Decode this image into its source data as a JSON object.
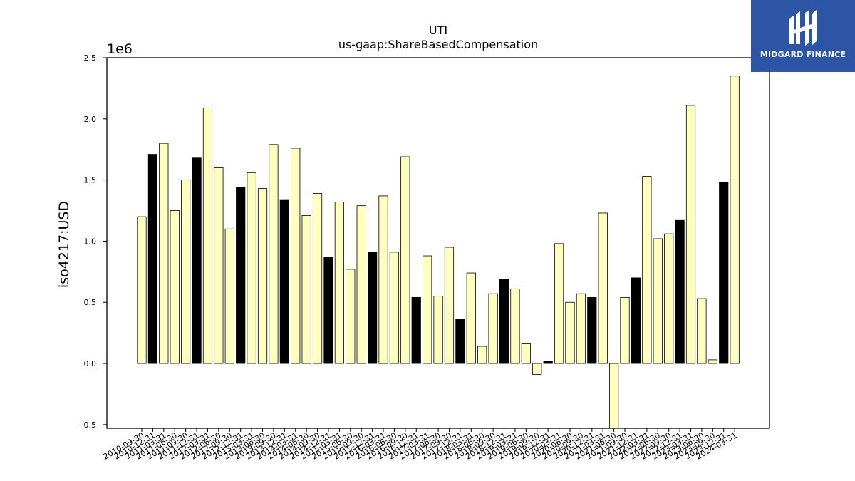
{
  "chart_data": {
    "type": "bar",
    "title": "UTI",
    "subtitle": "us-gaap:ShareBasedCompensation",
    "ylabel": "iso4217:USD",
    "xlabel": "",
    "y_offset_label": "1e6",
    "ylim": [
      -0.53,
      2.5
    ],
    "yticks": [
      -0.5,
      0.0,
      0.5,
      1.0,
      1.5,
      2.0,
      2.5
    ],
    "ytick_labels": [
      "−0.5",
      "0.0",
      "0.5",
      "1.0",
      "1.5",
      "2.0",
      "2.5"
    ],
    "colors": {
      "fiscal_year_end": "#000000",
      "other": "#ffffc0",
      "edge": "#000000"
    },
    "categories": [
      "2010-09-30",
      "2010-12-31",
      "2011-03-31",
      "2011-06-30",
      "2011-09-30",
      "2011-12-31",
      "2012-03-31",
      "2012-06-30",
      "2012-09-30",
      "2012-12-31",
      "2013-03-31",
      "2013-06-30",
      "2013-09-30",
      "2013-12-31",
      "2014-03-31",
      "2014-06-30",
      "2014-09-30",
      "2014-12-31",
      "2015-03-31",
      "2015-06-30",
      "2015-09-30",
      "2015-12-31",
      "2016-03-31",
      "2016-06-30",
      "2016-09-30",
      "2016-12-31",
      "2017-03-31",
      "2017-06-30",
      "2017-09-30",
      "2017-12-31",
      "2018-03-31",
      "2018-06-30",
      "2018-09-30",
      "2018-12-31",
      "2019-03-31",
      "2019-06-30",
      "2019-09-30",
      "2019-12-31",
      "2020-03-31",
      "2020-06-30",
      "2020-09-30",
      "2020-12-31",
      "2021-03-31",
      "2021-06-30",
      "2021-09-30",
      "2021-12-31",
      "2022-03-31",
      "2022-06-30",
      "2022-09-30",
      "2022-12-31",
      "2023-03-31",
      "2023-06-30",
      "2023-09-30",
      "2023-12-31",
      "2024-03-31"
    ],
    "values": [
      1.2,
      1.71,
      1.8,
      1.25,
      1.5,
      1.68,
      2.09,
      1.6,
      1.1,
      1.44,
      1.56,
      1.43,
      1.79,
      1.34,
      1.76,
      1.21,
      1.39,
      0.87,
      1.32,
      0.77,
      1.29,
      0.91,
      1.37,
      0.91,
      1.69,
      0.54,
      0.88,
      0.55,
      0.95,
      0.36,
      0.74,
      0.14,
      0.57,
      0.69,
      0.61,
      0.16,
      -0.09,
      0.02,
      0.98,
      0.5,
      0.57,
      0.54,
      1.23,
      -0.53,
      0.54,
      0.7,
      1.53,
      1.02,
      1.06,
      1.17,
      2.11,
      0.53,
      0.03,
      1.48,
      2.35
    ],
    "highlight": [
      false,
      true,
      false,
      false,
      false,
      true,
      false,
      false,
      false,
      true,
      false,
      false,
      false,
      true,
      false,
      false,
      false,
      true,
      false,
      false,
      false,
      true,
      false,
      false,
      false,
      true,
      false,
      false,
      false,
      true,
      false,
      false,
      false,
      true,
      false,
      false,
      false,
      true,
      false,
      false,
      false,
      true,
      false,
      false,
      false,
      true,
      false,
      false,
      false,
      true,
      false,
      false,
      false,
      true,
      false
    ]
  },
  "logo": {
    "text": "MIDGARD FINANCE"
  }
}
